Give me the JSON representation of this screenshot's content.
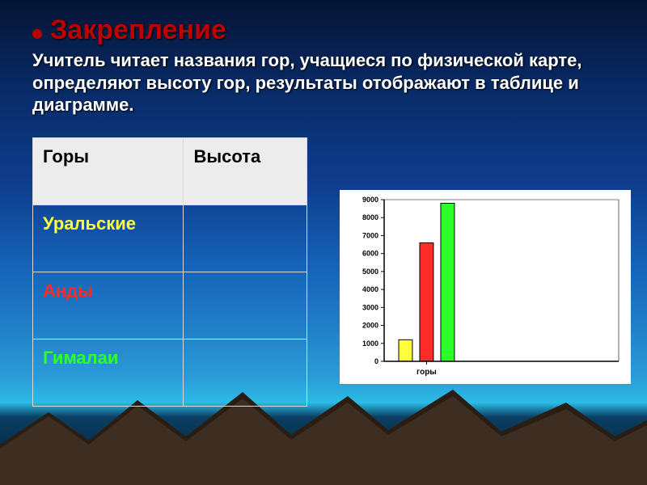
{
  "header": {
    "title": "Закрепление",
    "title_color": "#bd0000",
    "subtitle": "Учитель читает названия гор, учащиеся по физической карте, определяют высоту гор, результаты отображают в таблице и диаграмме.",
    "subtitle_color": "#ffffff"
  },
  "table": {
    "columns": [
      "Горы",
      "Высота"
    ],
    "rows": [
      {
        "label": "Уральские",
        "color": "#ffff3a",
        "value": ""
      },
      {
        "label": "Анды",
        "color": "#ff2a2a",
        "value": ""
      },
      {
        "label": "Гималаи",
        "color": "#2cff2c",
        "value": ""
      }
    ],
    "header_bg": "#ececec",
    "header_text": "#000000",
    "border_color": "#d9d9d9",
    "fontsize": 22
  },
  "chart": {
    "type": "bar",
    "background_color": "#ffffff",
    "plot_border": "#000000",
    "axis_color": "#000000",
    "tick_fontsize": 9,
    "xlabel": "горы",
    "xlabel_fontsize": 10,
    "ylim": [
      0,
      9000
    ],
    "ytick_step": 1000,
    "yticks": [
      0,
      1000,
      2000,
      3000,
      4000,
      5000,
      6000,
      7000,
      8000,
      9000
    ],
    "bar_width": 0.65,
    "bar_border": "#000000",
    "series": [
      {
        "name": "Уральские",
        "value": 1200,
        "color": "#ffff3a"
      },
      {
        "name": "Анды",
        "value": 6600,
        "color": "#ff2a2a"
      },
      {
        "name": "Гималаи",
        "value": 8800,
        "color": "#2cff2c"
      }
    ]
  },
  "background": {
    "mountain_fill": "#2a1d14",
    "mountain_highlight": "#6a4f3b"
  }
}
